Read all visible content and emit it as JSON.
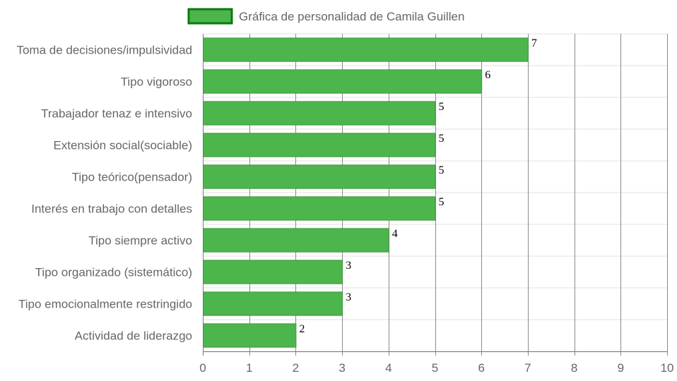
{
  "chart_data": {
    "type": "bar",
    "orientation": "horizontal",
    "categories": [
      "Toma de decisiones/impulsividad",
      "Tipo vigoroso",
      "Trabajador tenaz e intensivo",
      "Extensión social(sociable)",
      "Tipo teórico(pensador)",
      "Interés en trabajo con detalles",
      "Tipo siempre activo",
      "Tipo organizado (sistemático)",
      "Tipo emocionalmente restringido",
      "Actividad de liderazgo"
    ],
    "series": [
      {
        "name": "Gráfica de personalidad de Camila Guillen",
        "values": [
          7,
          6,
          5,
          5,
          5,
          5,
          4,
          3,
          3,
          2
        ]
      }
    ],
    "xlim": [
      0,
      10
    ],
    "x_ticks": [
      "0",
      "1",
      "2",
      "3",
      "4",
      "5",
      "6",
      "7",
      "8",
      "9",
      "10"
    ],
    "grid": true,
    "legend_position": "top",
    "colors": {
      "bar_fill": "#4cb54c",
      "bar_border": "#3d9a3d",
      "legend_fill": "#4cb54c",
      "legend_border": "#0b7a0b",
      "grid_vertical": "#8a8a8a",
      "grid_horizontal": "#e2e2e2",
      "text": "#666666"
    }
  }
}
